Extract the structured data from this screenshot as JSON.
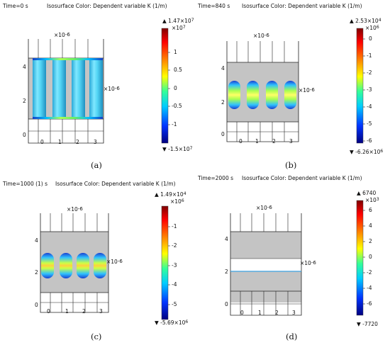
{
  "panels": [
    {
      "time_label": "Time=0 s",
      "iso_label": "Isosurface Color: Dependent variable K (1/m)",
      "caption": "(a)",
      "colorbar": {
        "max_label": "▲ 1.47×10",
        "max_exp": "7",
        "scale_label": "×10",
        "scale_exp": "7",
        "ticks": [
          "1",
          "0.5",
          "0",
          "-0.5",
          "-1"
        ],
        "min_label": "▼ -1.5×10",
        "min_exp": "7"
      },
      "axes": {
        "x_scale": "×10",
        "x_scale_exp": "-6",
        "y_scale": "×10",
        "y_scale_exp": "-6",
        "x_ticks": [
          "0",
          "1",
          "2",
          "3"
        ],
        "y_ticks": [
          "4",
          "2",
          "0"
        ]
      }
    },
    {
      "time_label": "Time=840 s",
      "iso_label": "Isosurface Color: Dependent variable K (1/m)",
      "caption": "(b)",
      "colorbar": {
        "max_label": "▲ 2.53×10",
        "max_exp": "4",
        "scale_label": "×10",
        "scale_exp": "6",
        "ticks": [
          "0",
          "-1",
          "-2",
          "-3",
          "-4",
          "-5",
          "-6"
        ],
        "min_label": "▼ -6.26×10",
        "min_exp": "6"
      },
      "axes": {
        "x_scale": "×10",
        "x_scale_exp": "-6",
        "y_scale": "×10",
        "y_scale_exp": "-6",
        "x_ticks": [
          "0",
          "1",
          "2",
          "3"
        ],
        "y_ticks": [
          "4",
          "2",
          "0"
        ]
      }
    },
    {
      "time_label": "Time=1000 (1) s",
      "iso_label": "Isosurface Color: Dependent variable K (1/m)",
      "caption": "(c)",
      "colorbar": {
        "max_label": "▲ 1.49×10",
        "max_exp": "4",
        "scale_label": "×10",
        "scale_exp": "6",
        "ticks": [
          "-1",
          "-2",
          "-3",
          "-4",
          "-5"
        ],
        "min_label": "▼ -5.69×10",
        "min_exp": "6"
      },
      "axes": {
        "x_scale": "×10",
        "x_scale_exp": "-6",
        "y_scale": "×10",
        "y_scale_exp": "-6",
        "x_ticks": [
          "0",
          "1",
          "2",
          "3"
        ],
        "y_ticks": [
          "4",
          "2",
          "0"
        ]
      }
    },
    {
      "time_label": "Time=2000 s",
      "iso_label": "Isosurface Color: Dependent variable K (1/m)",
      "caption": "(d)",
      "colorbar": {
        "max_label": "▲ 6740",
        "max_exp": "",
        "scale_label": "×10",
        "scale_exp": "3",
        "ticks": [
          "6",
          "4",
          "2",
          "0",
          "-2",
          "-4",
          "-6"
        ],
        "min_label": "▼ -7720",
        "min_exp": ""
      },
      "axes": {
        "x_scale": "×10",
        "x_scale_exp": "-6",
        "y_scale": "×10",
        "y_scale_exp": "-6",
        "x_ticks": [
          "0",
          "1",
          "2",
          "3"
        ],
        "y_ticks": [
          "4",
          "2",
          "0"
        ]
      }
    }
  ]
}
